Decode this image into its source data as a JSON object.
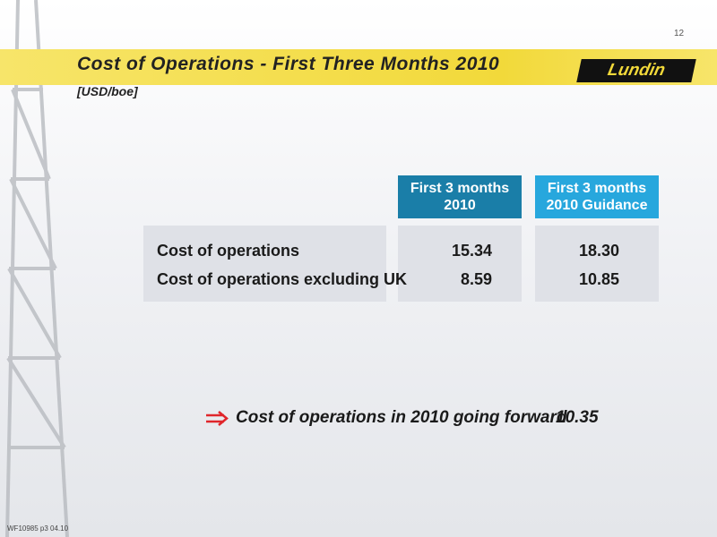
{
  "header": {
    "page_number": "12",
    "title": "Cost of Operations - First Three Months 2010",
    "subtitle": "[USD/boe]",
    "logo": "Lundin"
  },
  "table": {
    "columns": [
      "First 3 months 2010",
      "First 3 months 2010 Guidance"
    ],
    "rows": [
      [
        "Cost of operations",
        "15.34",
        "18.30"
      ],
      [
        "Cost of operations excluding UK",
        "8.59",
        "10.85"
      ]
    ]
  },
  "note": {
    "text": "Cost of operations in 2010 going forward",
    "value": "10.35"
  },
  "footer": {
    "reference": "WF10985 p3 04.10"
  }
}
